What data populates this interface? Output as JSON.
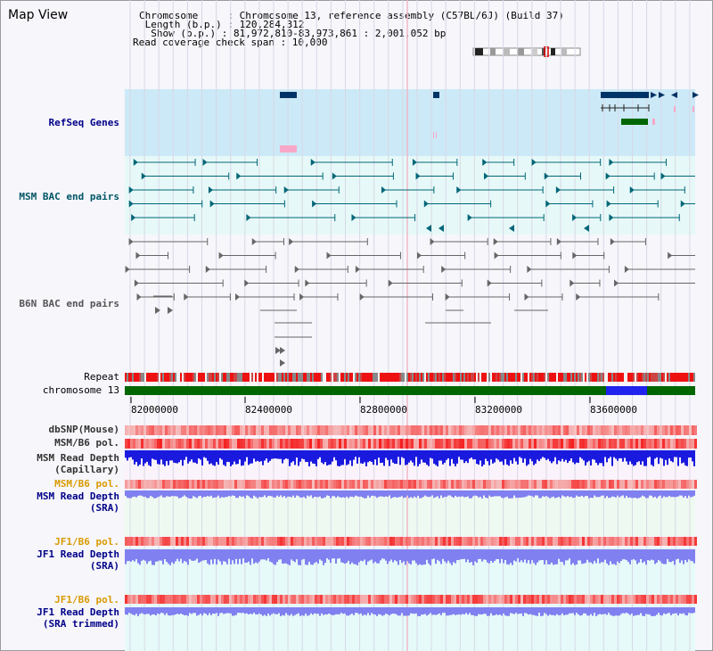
{
  "title": "Map View",
  "info": {
    "chromosome_label": "Chromosome     : Chromosome 13, reference assembly (C57BL/6J) (Build 37)",
    "length_label": " Length (b.p.) : 120,284,312",
    "show_label": "  Show (b.p.) : 81,972,810-83,973,861 : 2,001,052 bp",
    "coverage_label": "Read coverage check span : 10,000"
  },
  "tracks": {
    "refseq": "RefSeq Genes",
    "msm_bac": "MSM BAC end pairs",
    "b6n_bac": "B6N BAC end pairs",
    "repeat": "Repeat",
    "chromosome": "chromosome 13",
    "dbsnp": "dbSNP(Mouse)",
    "msm_b6_pol_1": "MSM/B6 pol.",
    "msm_depth_cap": "MSM Read Depth\n(Capillary)",
    "msm_b6_pol_2": "MSM/B6 pol.",
    "msm_depth_sra": "MSM Read Depth\n(SRA)",
    "jf1_b6_pol_1": "JF1/B6 pol.",
    "jf1_depth_sra": "JF1 Read Depth\n(SRA)",
    "jf1_b6_pol_2": "JF1/B6 pol.",
    "jf1_depth_trim": "JF1 Read Depth\n(SRA trimmed)"
  },
  "axis": {
    "ticks": [
      "82000000",
      "82400000",
      "82800000",
      "83200000",
      "83600000"
    ]
  },
  "colors": {
    "refseq_bg": "#cce9f7",
    "msm_bg": "#e6f9f8",
    "gene": "#003366",
    "gene_green": "#006600",
    "msm_pair": "#006677",
    "b6n_pair": "#666666",
    "chrom": "#006600",
    "chrom_highlight": "#2222ee",
    "depth_blue": "#1a1adf",
    "depth_light": "#8080f0"
  }
}
